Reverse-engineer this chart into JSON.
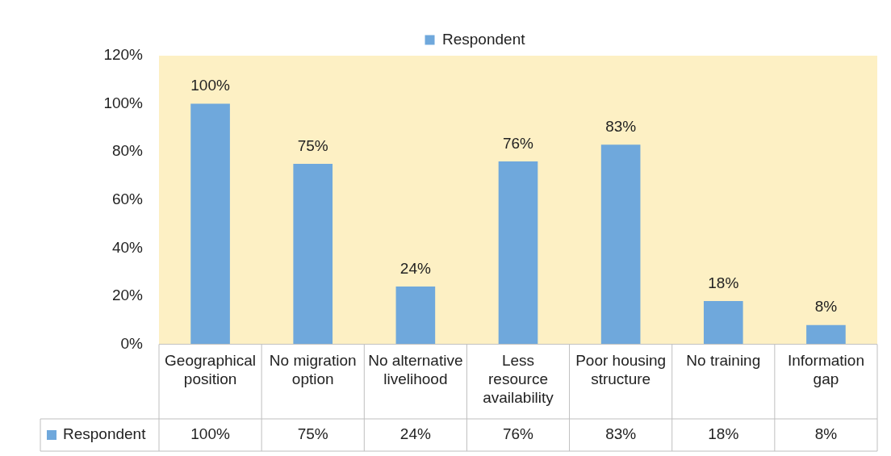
{
  "chart_data": {
    "type": "bar",
    "categories": [
      "Geographical position",
      "No migration option",
      "No alternative livelihood",
      "Less resource availability",
      "Poor housing structure",
      "No training",
      "Information gap"
    ],
    "series": [
      {
        "name": "Respondent",
        "color": "#6fa8dc",
        "values": [
          100,
          75,
          24,
          76,
          83,
          18,
          8
        ]
      }
    ],
    "value_labels": [
      "100%",
      "75%",
      "24%",
      "76%",
      "83%",
      "18%",
      "8%"
    ],
    "ylim": [
      0,
      120
    ],
    "yticks": [
      {
        "value": 0,
        "label": "0%"
      },
      {
        "value": 20,
        "label": "20%"
      },
      {
        "value": 40,
        "label": "40%"
      },
      {
        "value": 60,
        "label": "60%"
      },
      {
        "value": 80,
        "label": "80%"
      },
      {
        "value": 100,
        "label": "100%"
      },
      {
        "value": 120,
        "label": "120%"
      }
    ],
    "grid": false,
    "legend": "top"
  }
}
